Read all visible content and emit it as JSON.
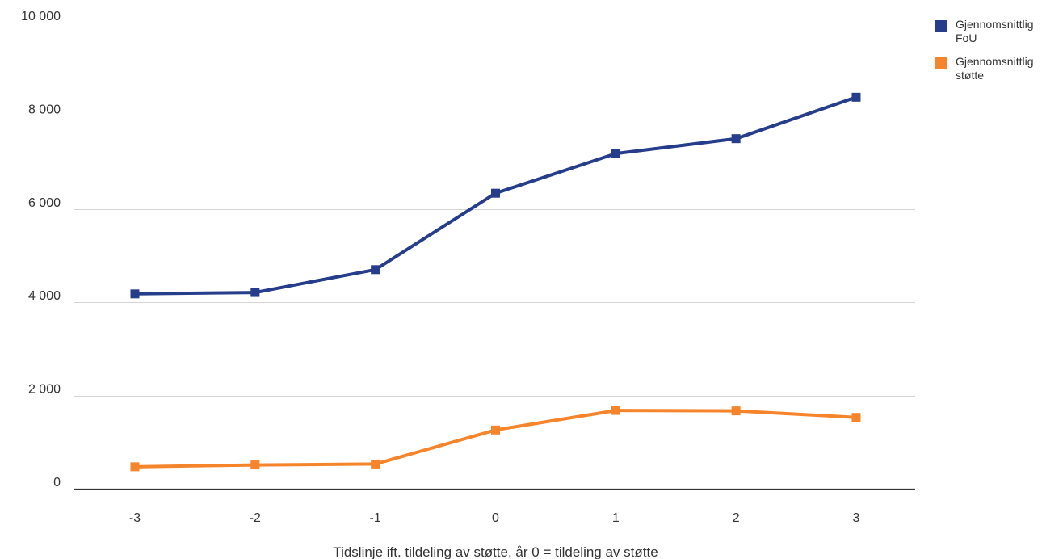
{
  "chart_data": {
    "type": "line",
    "title": "",
    "xlabel": "Tidslinje ift. tildeling av støtte, år 0 = tildeling av støtte",
    "ylabel": "",
    "categories": [
      "-3",
      "-2",
      "-1",
      "0",
      "1",
      "2",
      "3"
    ],
    "ylim": [
      0,
      10000
    ],
    "yticks": [
      0,
      2000,
      4000,
      6000,
      8000,
      10000
    ],
    "ytick_labels": [
      "0",
      "2 000",
      "4 000",
      "6 000",
      "8 000",
      "10 000"
    ],
    "grid": "horizontal",
    "legend_position": "top-right",
    "series": [
      {
        "name": "Gjennomsnittlig FoU",
        "color": "#253d8a",
        "values": [
          4180,
          4210,
          4700,
          6340,
          7190,
          7510,
          8400
        ]
      },
      {
        "name": "Gjennomsnittlig støtte",
        "color": "#f5842b",
        "values": [
          470,
          510,
          530,
          1260,
          1680,
          1670,
          1530
        ]
      }
    ]
  }
}
